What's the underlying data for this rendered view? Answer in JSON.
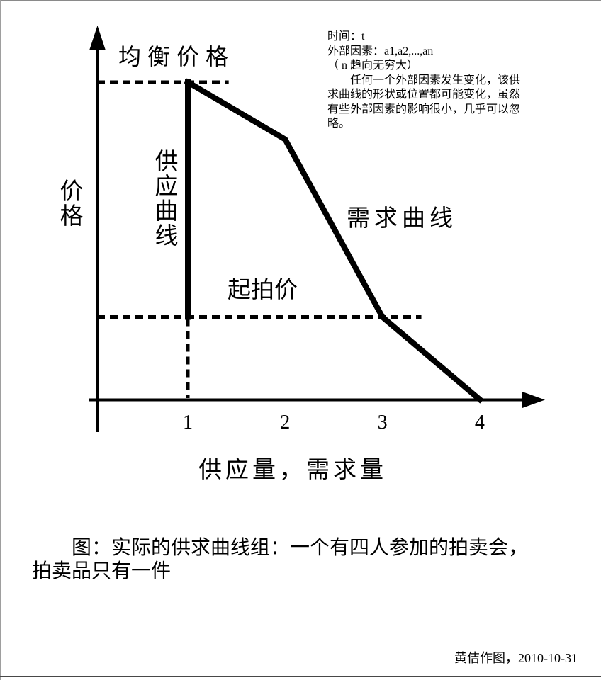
{
  "colors": {
    "ink": "#000000",
    "background": "#ffffff",
    "frame_top": "#8a8a8a",
    "frame_left": "#9e9e9e",
    "frame_bottom": "#474747"
  },
  "info_block": {
    "lines": [
      "时间：t",
      "外部因素：a1,a2,...,an",
      "（ n 趋向无穷大）",
      "　　任何一个外部因素发生变化，该供",
      "求曲线的形状或位置都可能变化，虽然",
      "有些外部因素的影响很小，几乎可以忽",
      "略。"
    ]
  },
  "chart_data": {
    "type": "line",
    "title": "",
    "ylabel": "价格",
    "xlabel": "供应量，需求量",
    "xlim": [
      0,
      4.7
    ],
    "ylim": [
      0,
      11.5
    ],
    "grid": false,
    "x_ticks": [
      {
        "label": "1",
        "x": 1
      },
      {
        "label": "2",
        "x": 2
      },
      {
        "label": "3",
        "x": 3
      },
      {
        "label": "4",
        "x": 4
      }
    ],
    "series": [
      {
        "name": "供应曲线",
        "points": [
          [
            1,
            10
          ],
          [
            1,
            2.6
          ]
        ]
      },
      {
        "name": "需求曲线",
        "points": [
          [
            1,
            10
          ],
          [
            2,
            8.2
          ],
          [
            3,
            2.6
          ],
          [
            4,
            0
          ]
        ]
      }
    ],
    "dashed_lines": [
      {
        "name": "equilibrium-price-level",
        "orient": "h",
        "y": 10,
        "x1": 0,
        "x2": 1.42
      },
      {
        "name": "start-price-level",
        "orient": "h",
        "y": 2.6,
        "x1": 0,
        "x2": 3.4
      },
      {
        "name": "supply-quantity-marker",
        "orient": "v",
        "x": 1,
        "y1": 0,
        "y2": 2.6
      }
    ],
    "annotations": {
      "equilibrium_price": "均衡价格",
      "supply_curve": "供应曲线",
      "demand_curve": "需求曲线",
      "start_price": "起拍价"
    }
  },
  "caption": {
    "lines": [
      "　　图：实际的供求曲线组：一个有四人参加的拍卖会，",
      "拍卖品只有一件"
    ]
  },
  "signature": "黄佶作图，2010-10-31"
}
